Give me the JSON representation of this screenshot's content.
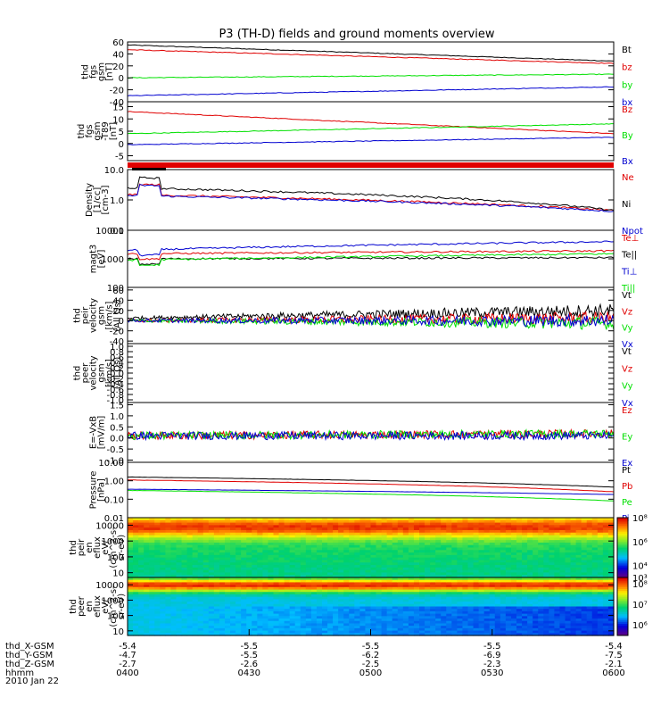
{
  "title": "P3 (TH-D) fields and ground moments overview",
  "date_label": "2010 Jan 22",
  "colors": {
    "black": "#000000",
    "red": "#e00000",
    "green": "#00e000",
    "blue": "#0000d0"
  },
  "chart_data": [
    {
      "id": "fgs_gsm",
      "type": "line",
      "ylabel": [
        "thd",
        "fgs",
        "gsm",
        "[nT]"
      ],
      "ylim": [
        -40,
        60
      ],
      "log": false,
      "ticks": [
        "60",
        "40",
        "20",
        "0",
        "-20",
        "-40"
      ],
      "tickvals": [
        60,
        40,
        20,
        0,
        -20,
        -40
      ],
      "series": [
        {
          "name": "Bt",
          "color": "#000000",
          "start": 55,
          "end": 28
        },
        {
          "name": "bz",
          "color": "#e00000",
          "start": 47,
          "end": 24
        },
        {
          "name": "by",
          "color": "#00e000",
          "start": 0,
          "end": 6
        },
        {
          "name": "bx",
          "color": "#0000d0",
          "start": -30,
          "end": -15
        }
      ]
    },
    {
      "id": "fgs_gsm_t89",
      "type": "line",
      "ylabel": [
        "thd",
        "fgs",
        "gsm",
        "-T89",
        "[nT]"
      ],
      "ylim": [
        -7,
        17
      ],
      "log": false,
      "ticks": [
        "15",
        "10",
        "5",
        "0",
        "-5"
      ],
      "tickvals": [
        15,
        10,
        5,
        0,
        -5
      ],
      "series": [
        {
          "name": "Bz",
          "color": "#e00000",
          "start": 13,
          "end": 4
        },
        {
          "name": "By",
          "color": "#00e000",
          "start": 4,
          "end": 8
        },
        {
          "name": "Bx",
          "color": "#0000d0",
          "start": -0.5,
          "end": 2.5
        }
      ]
    },
    {
      "id": "density",
      "type": "line",
      "ylabel": [
        "Density",
        "[1/cc]",
        "[cm-3]"
      ],
      "ylim": [
        0.1,
        10
      ],
      "log": true,
      "ticks": [
        "10.0",
        "1.0",
        "0.1"
      ],
      "tickvals": [
        10,
        1,
        0.1
      ],
      "series": [
        {
          "name": "Ne",
          "color": "#e00000",
          "start": 1.5,
          "end": 0.45
        },
        {
          "name": "Ni",
          "color": "#000000",
          "start": 2.5,
          "end": 0.45
        },
        {
          "name": "Npot",
          "color": "#0000d0",
          "start": 1.4,
          "end": 0.42
        }
      ]
    },
    {
      "id": "temperature",
      "type": "line",
      "ylabel": [
        "magt3",
        "[eV]"
      ],
      "ylim": [
        100,
        10000
      ],
      "log": true,
      "ticks": [
        "10000",
        "1000",
        "100"
      ],
      "tickvals": [
        10000,
        1000,
        100
      ],
      "series": [
        {
          "name": "Te⊥",
          "color": "#e00000",
          "start": 1500,
          "end": 1900
        },
        {
          "name": "Te||",
          "color": "#000000",
          "start": 1000,
          "end": 1100
        },
        {
          "name": "Ti⊥",
          "color": "#0000d0",
          "start": 2000,
          "end": 4000
        },
        {
          "name": "Ti||",
          "color": "#00e000",
          "start": 900,
          "end": 1500
        }
      ]
    },
    {
      "id": "peir_velocity",
      "type": "line",
      "ylabel": [
        "thd",
        "peir",
        "velocity",
        "gsm",
        "[km/s]",
        "(All Qs)"
      ],
      "ylim": [
        -45,
        65
      ],
      "log": false,
      "ticks": [
        "60",
        "40",
        "20",
        "0",
        "-20",
        "-40"
      ],
      "tickvals": [
        60,
        40,
        20,
        0,
        -20,
        -40
      ],
      "series": [
        {
          "name": "Vt",
          "color": "#000000",
          "start": 5,
          "end": 20
        },
        {
          "name": "Vz",
          "color": "#e00000",
          "start": 0,
          "end": 5
        },
        {
          "name": "Vy",
          "color": "#00e000",
          "start": 0,
          "end": -5
        },
        {
          "name": "Vx",
          "color": "#0000d0",
          "start": 0,
          "end": 0
        }
      ]
    },
    {
      "id": "peer_velocity",
      "type": "line",
      "ylabel": [
        "thd",
        "peer",
        "velocity",
        "gsm",
        "[km/s]",
        "(All Qs)"
      ],
      "ylim": [
        -1.1,
        1.1
      ],
      "log": false,
      "ticks": [
        "1.0",
        "0.8",
        "0.6",
        "0.4",
        "0.2",
        "0.0",
        "-0.2",
        "-0.4",
        "-0.6",
        "-0.8",
        "-1.0"
      ],
      "tickvals": [
        1,
        0.8,
        0.6,
        0.4,
        0.2,
        0,
        -0.2,
        -0.4,
        -0.6,
        -0.8,
        -1
      ],
      "series": [
        {
          "name": "Vt",
          "color": "#000000"
        },
        {
          "name": "Vz",
          "color": "#e00000"
        },
        {
          "name": "Vy",
          "color": "#00e000"
        },
        {
          "name": "Vx",
          "color": "#0000d0"
        }
      ]
    },
    {
      "id": "efield",
      "type": "line",
      "ylabel": [
        "E=-VxB",
        "[mV/m]"
      ],
      "ylim": [
        -1.1,
        1.6
      ],
      "log": false,
      "ticks": [
        "1.5",
        "1.0",
        "0.5",
        "0.0",
        "-0.5",
        "-1.0"
      ],
      "tickvals": [
        1.5,
        1,
        0.5,
        0,
        -0.5,
        -1
      ],
      "series": [
        {
          "name": "Ez",
          "color": "#e00000",
          "start": 0.1,
          "end": 0.2
        },
        {
          "name": "Ey",
          "color": "#00e000",
          "start": 0.1,
          "end": 0.2
        },
        {
          "name": "Ex",
          "color": "#0000d0",
          "start": 0.1,
          "end": 0.1
        }
      ]
    },
    {
      "id": "pressure",
      "type": "line",
      "ylabel": [
        "Pressure",
        "[nPa]"
      ],
      "ylim": [
        0.01,
        10
      ],
      "log": true,
      "ticks": [
        "10.00",
        "1.00",
        "0.10",
        "0.01"
      ],
      "tickvals": [
        10,
        1,
        0.1,
        0.01
      ],
      "series": [
        {
          "name": "Pt",
          "color": "#000000",
          "start": 1.6,
          "end": 0.45
        },
        {
          "name": "Pb",
          "color": "#e00000",
          "start": 1.1,
          "end": 0.25
        },
        {
          "name": "Pe",
          "color": "#00e000",
          "start": 0.3,
          "end": 0.08
        },
        {
          "name": "Pi",
          "color": "#0000d0",
          "start": 0.35,
          "end": 0.18
        }
      ]
    },
    {
      "id": "peir_en_eflux",
      "type": "heatmap",
      "ylabel": [
        "thd",
        "peir",
        "en",
        "eflux",
        "eV/",
        "(cm^2-s-",
        "sr-eV)"
      ],
      "ylim": [
        5,
        30000
      ],
      "log": true,
      "ticks": [
        "10000",
        "1000",
        "100",
        "10"
      ],
      "tickvals": [
        10000,
        1000,
        100,
        10
      ],
      "colorbar_ticks": [
        "10⁸",
        "10⁶",
        "10⁴",
        "10³"
      ],
      "colorbar_range": [
        1000,
        100000000.0
      ]
    },
    {
      "id": "peer_en_eflux",
      "type": "heatmap",
      "ylabel": [
        "thd",
        "peer",
        "en",
        "eflux",
        "eV/",
        "(cm^2-s-",
        "sr-eV)"
      ],
      "ylim": [
        5,
        30000
      ],
      "log": true,
      "ticks": [
        "10000",
        "1000",
        "100",
        "10"
      ],
      "tickvals": [
        10000,
        1000,
        100,
        10
      ],
      "colorbar_ticks": [
        "10⁸",
        "10⁷",
        "10⁶"
      ],
      "colorbar_range": [
        300000,
        200000000.0
      ]
    }
  ],
  "time_axis": {
    "rows": [
      {
        "label": "thd_X-GSM",
        "values": [
          "-5.4",
          "-5.5",
          "-5.5",
          "-5.5",
          "-5.4"
        ]
      },
      {
        "label": "thd_Y-GSM",
        "values": [
          "-4.7",
          "-5.5",
          "-6.2",
          "-6.9",
          "-7.5"
        ]
      },
      {
        "label": "thd_Z-GSM",
        "values": [
          "-2.7",
          "-2.6",
          "-2.5",
          "-2.3",
          "-2.1"
        ]
      },
      {
        "label": "hhmm",
        "values": [
          "0400",
          "0430",
          "0500",
          "0530",
          "0600"
        ]
      }
    ]
  }
}
